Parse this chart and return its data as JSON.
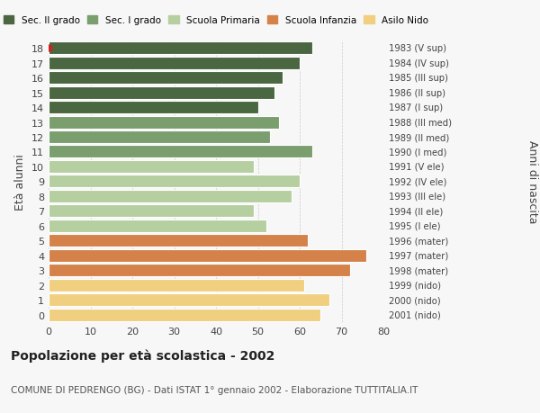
{
  "ages": [
    18,
    17,
    16,
    15,
    14,
    13,
    12,
    11,
    10,
    9,
    8,
    7,
    6,
    5,
    4,
    3,
    2,
    1,
    0
  ],
  "values": [
    63,
    60,
    56,
    54,
    50,
    55,
    53,
    63,
    49,
    60,
    58,
    49,
    52,
    62,
    76,
    72,
    61,
    67,
    65
  ],
  "right_labels": [
    "1983 (V sup)",
    "1984 (IV sup)",
    "1985 (III sup)",
    "1986 (II sup)",
    "1987 (I sup)",
    "1988 (III med)",
    "1989 (II med)",
    "1990 (I med)",
    "1991 (V ele)",
    "1992 (IV ele)",
    "1993 (III ele)",
    "1994 (II ele)",
    "1995 (I ele)",
    "1996 (mater)",
    "1997 (mater)",
    "1998 (mater)",
    "1999 (nido)",
    "2000 (nido)",
    "2001 (nido)"
  ],
  "colors": [
    "#4a6741",
    "#4a6741",
    "#4a6741",
    "#4a6741",
    "#4a6741",
    "#7a9e6e",
    "#7a9e6e",
    "#7a9e6e",
    "#b5cfa0",
    "#b5cfa0",
    "#b5cfa0",
    "#b5cfa0",
    "#b5cfa0",
    "#d4824a",
    "#d4824a",
    "#d4824a",
    "#f0d080",
    "#f0d080",
    "#f0d080"
  ],
  "legend_labels": [
    "Sec. II grado",
    "Sec. I grado",
    "Scuola Primaria",
    "Scuola Infanzia",
    "Asilo Nido"
  ],
  "legend_colors": [
    "#4a6741",
    "#7a9e6e",
    "#b5cfa0",
    "#d4824a",
    "#f0d080"
  ],
  "ylabel_left": "Età alunni",
  "ylabel_right": "Anni di nascita",
  "title": "Popolazione per età scolastica - 2002",
  "subtitle": "COMUNE DI PEDRENGO (BG) - Dati ISTAT 1° gennaio 2002 - Elaborazione TUTTITALIA.IT",
  "xlim": [
    0,
    80
  ],
  "xticks": [
    0,
    10,
    20,
    30,
    40,
    50,
    60,
    70,
    80
  ],
  "bg_color": "#f7f7f7",
  "bar_edge_color": "white",
  "grid_color": "#cccccc",
  "dot_color": "#cc2222"
}
